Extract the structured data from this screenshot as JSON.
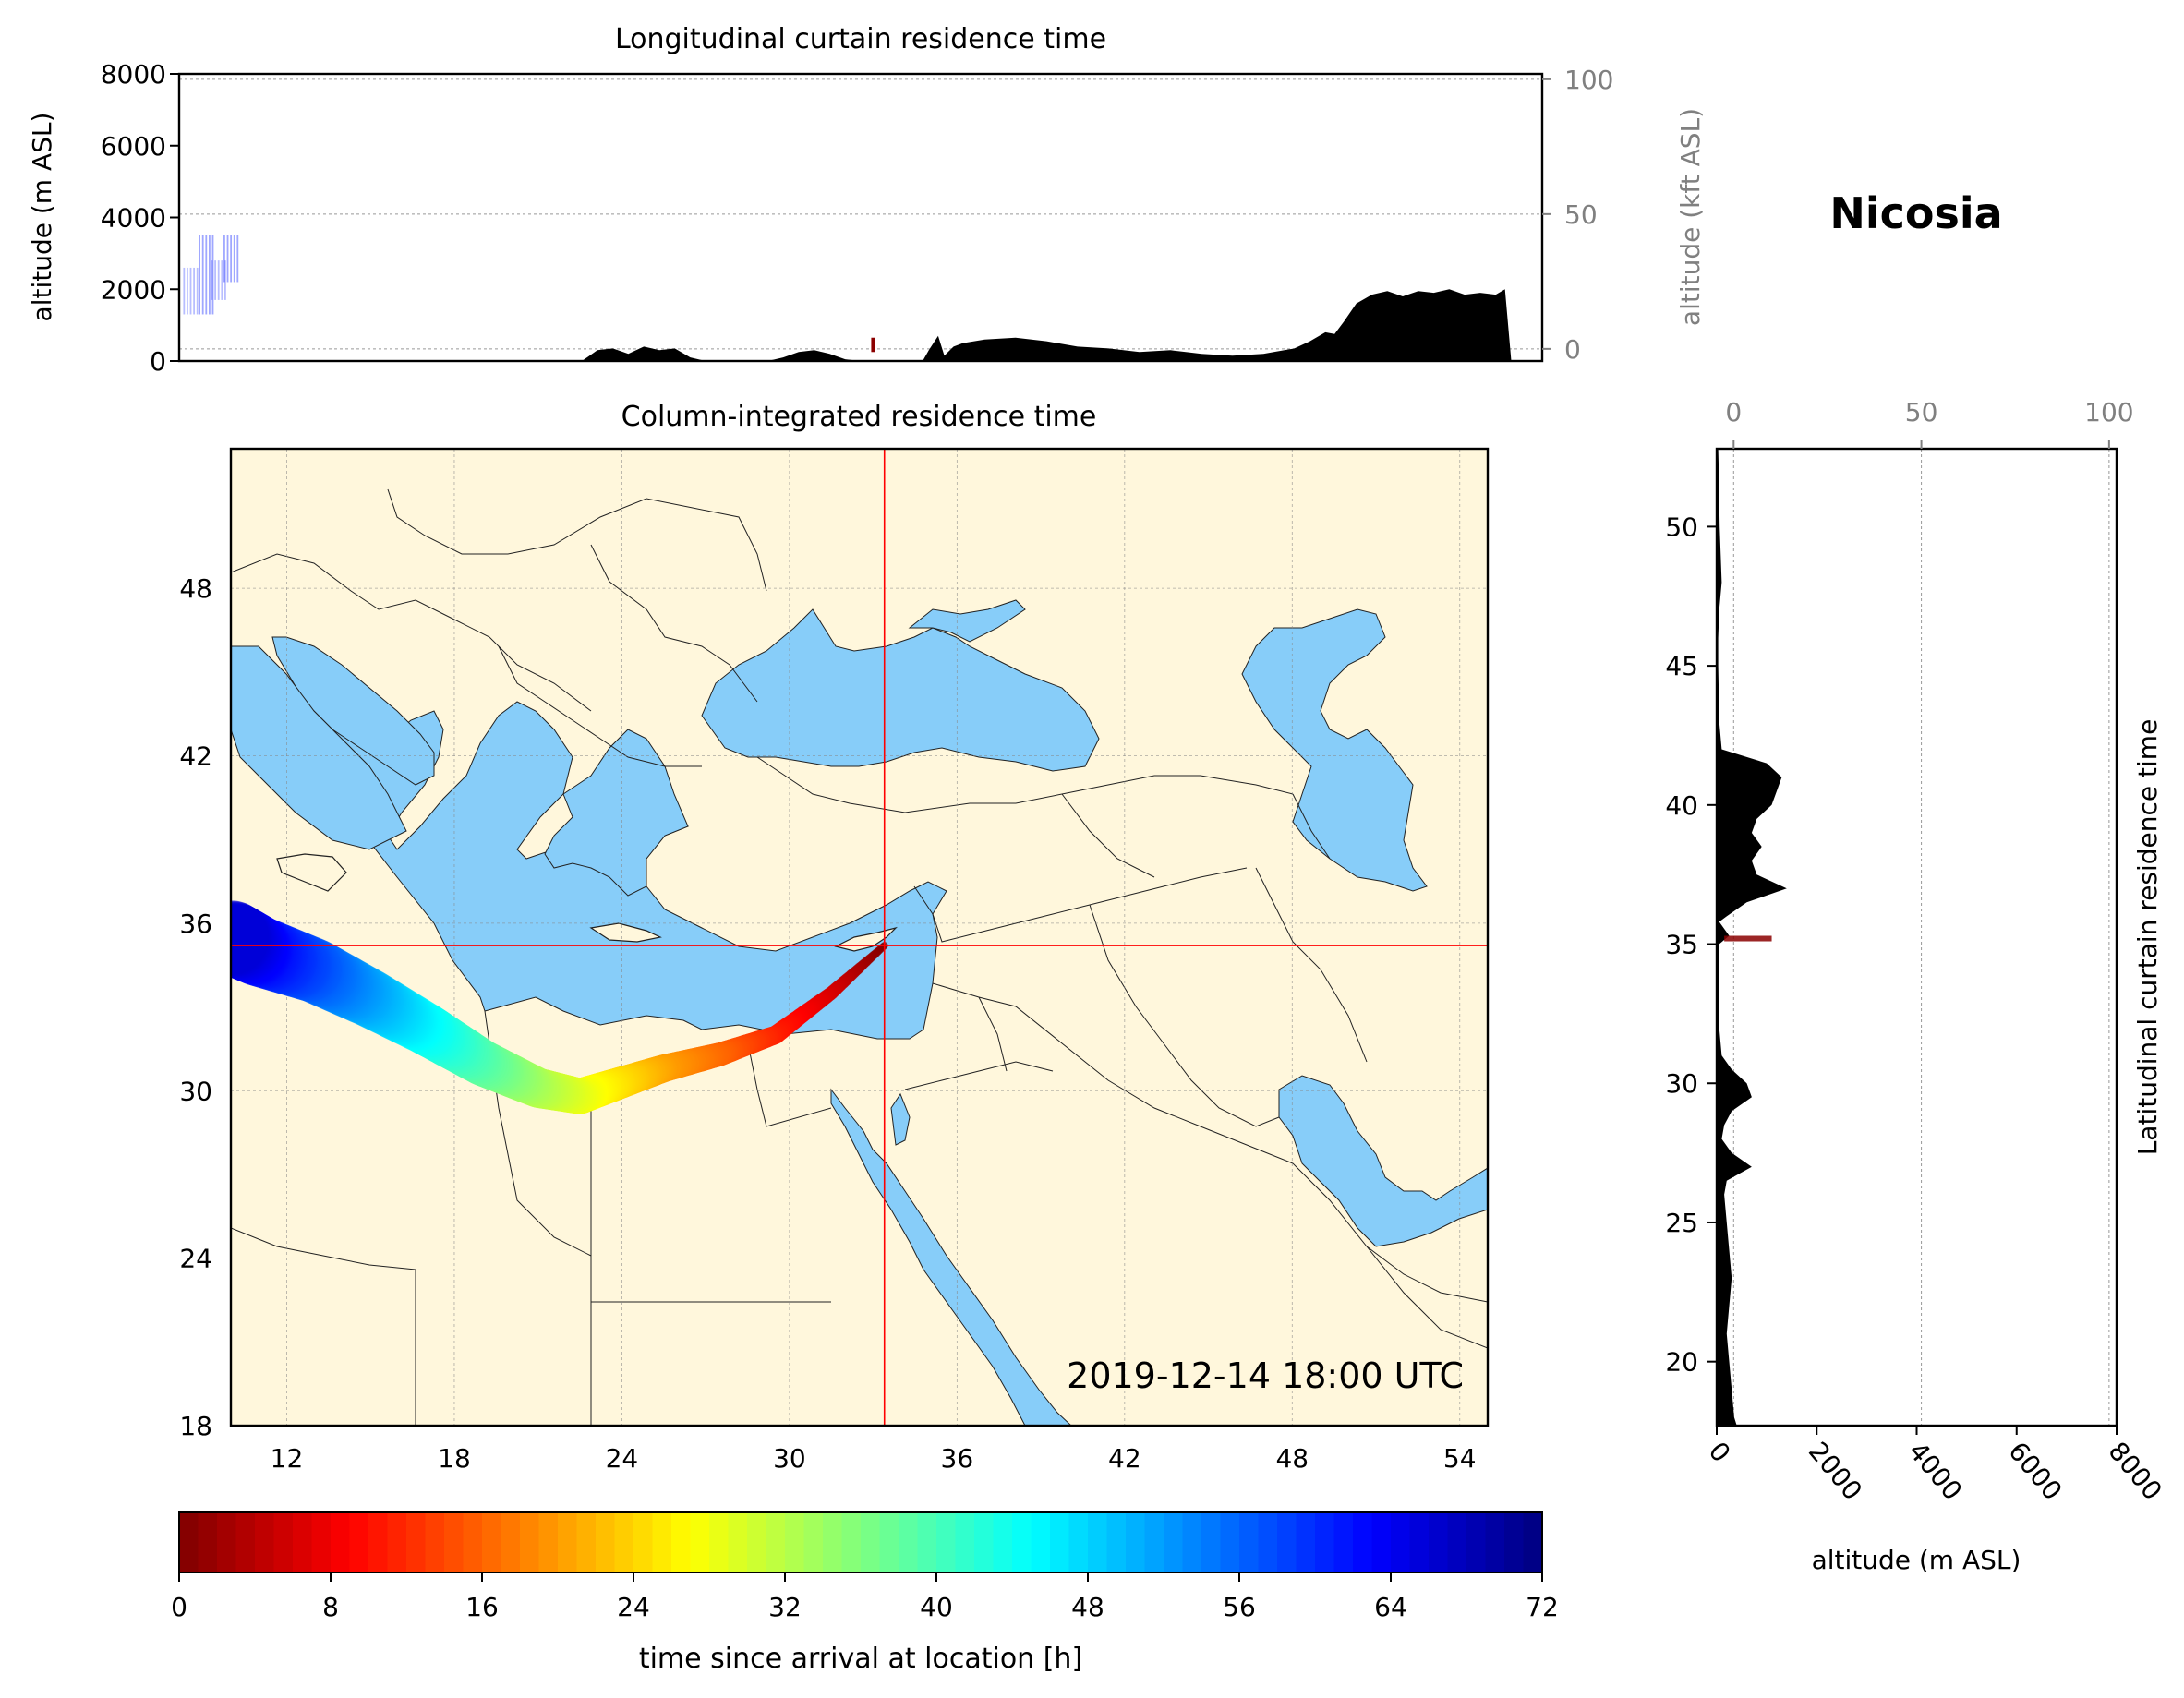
{
  "location": {
    "name": "Nicosia",
    "lat": 35.2,
    "lon": 33.4
  },
  "chart_data": [
    {
      "type": "area",
      "id": "longitudinal",
      "title": "Longitudinal curtain residence time",
      "ylabel": "altitude (m ASL)",
      "ylabel_right": "altitude (kft ASL)",
      "ylim": [
        0,
        8000
      ],
      "xlim": [
        11.0,
        55.0
      ],
      "yticks": [
        0,
        2000,
        4000,
        6000,
        8000
      ],
      "yticks_right": [
        0,
        50,
        100
      ],
      "ylim_right_kft": [
        -4.5,
        102
      ],
      "terrain": {
        "lon": [
          11,
          24,
          24.5,
          25,
          25.5,
          26,
          26.5,
          27,
          27.5,
          28,
          30,
          30.5,
          31,
          31.5,
          32,
          32.5,
          33,
          33.5,
          34,
          34.5,
          35,
          35.2,
          35.5,
          35.7,
          36,
          36.3,
          37,
          38,
          39,
          40,
          41,
          42,
          43,
          44,
          45,
          46,
          47,
          47.5,
          48,
          48.3,
          48.6,
          49,
          49.5,
          50,
          50.5,
          51,
          51.5,
          52,
          52.5,
          53,
          53.5,
          53.8,
          54,
          55
        ],
        "alt": [
          0,
          0,
          300,
          350,
          200,
          400,
          300,
          350,
          100,
          0,
          0,
          100,
          250,
          300,
          200,
          50,
          0,
          0,
          0,
          0,
          0,
          300,
          700,
          150,
          400,
          500,
          600,
          650,
          550,
          400,
          350,
          250,
          300,
          200,
          150,
          200,
          350,
          550,
          800,
          750,
          1100,
          1600,
          1850,
          1950,
          1800,
          1950,
          1900,
          2000,
          1850,
          1900,
          1850,
          2000,
          0,
          0
        ]
      },
      "plume_cells": [
        {
          "lon": 11.4,
          "alt_min": 1300,
          "alt_max": 2600
        },
        {
          "lon": 11.9,
          "alt_min": 1300,
          "alt_max": 3500
        },
        {
          "lon": 12.3,
          "alt_min": 1700,
          "alt_max": 2800
        },
        {
          "lon": 12.7,
          "alt_min": 2200,
          "alt_max": 3500
        }
      ],
      "receptor_mark": {
        "lon": 33.4,
        "alt_min": 250,
        "alt_max": 650
      }
    },
    {
      "type": "scatter",
      "id": "column",
      "title": "Column-integrated residence time",
      "xlim": [
        10,
        55
      ],
      "ylim": [
        18,
        53
      ],
      "xticks": [
        12,
        18,
        24,
        30,
        36,
        42,
        48,
        54
      ],
      "yticks": [
        18,
        24,
        30,
        36,
        42,
        48
      ],
      "annotation": "2019-12-14 18:00 UTC",
      "trajectory": {
        "lon": [
          33.4,
          31.5,
          29.5,
          27.5,
          25.5,
          24.0,
          22.5,
          21.0,
          19.0,
          17.0,
          15.0,
          13.0,
          11.0,
          10.0
        ],
        "lat": [
          35.2,
          33.5,
          32.0,
          31.3,
          30.8,
          30.3,
          29.8,
          30.1,
          31.0,
          32.2,
          33.3,
          34.3,
          35.0,
          35.5
        ],
        "hours": [
          0,
          6,
          11,
          16,
          20,
          24,
          28,
          32,
          38,
          44,
          50,
          56,
          62,
          66
        ]
      }
    },
    {
      "type": "area",
      "id": "latitudinal",
      "ylabel": "Latitudinal curtain residence time",
      "xlabel": "altitude (m ASL)",
      "xlim": [
        0,
        8000
      ],
      "ylim": [
        17.7,
        52.8
      ],
      "xticks": [
        0,
        2000,
        4000,
        6000,
        8000
      ],
      "xticks_top": [
        0,
        50,
        100
      ],
      "xlim_top_kft": [
        -4.5,
        102
      ],
      "yticks": [
        20,
        25,
        30,
        35,
        40,
        45,
        50
      ],
      "terrain": {
        "lat": [
          17.7,
          18,
          19,
          20,
          21,
          22,
          23,
          24,
          25,
          26,
          26.5,
          27,
          27.5,
          28,
          28.5,
          29,
          29.5,
          30,
          30.5,
          31,
          32,
          33,
          34,
          35,
          35.3,
          35.8,
          36,
          36.5,
          37,
          37.5,
          38,
          38.5,
          39,
          39.5,
          40,
          40.5,
          41,
          41.5,
          42,
          43,
          44,
          45,
          46,
          47,
          48,
          49,
          50,
          51,
          52,
          52.8
        ],
        "alt": [
          400,
          350,
          300,
          250,
          200,
          250,
          300,
          250,
          200,
          150,
          200,
          700,
          300,
          100,
          150,
          300,
          700,
          600,
          300,
          100,
          50,
          50,
          50,
          50,
          250,
          50,
          200,
          600,
          1400,
          800,
          700,
          900,
          700,
          800,
          1100,
          1200,
          1300,
          1000,
          100,
          50,
          40,
          30,
          30,
          50,
          100,
          80,
          60,
          50,
          40,
          30
        ]
      }
    }
  ],
  "colorbar": {
    "label": "time since arrival at location [h]",
    "ticks": [
      0,
      8,
      16,
      24,
      32,
      40,
      48,
      56,
      64,
      72
    ],
    "range": [
      0,
      72
    ],
    "colormap": "jet_r",
    "stops": [
      "#7f0000",
      "#ff0000",
      "#ff7f00",
      "#ffff00",
      "#7fff7f",
      "#00ffff",
      "#007fff",
      "#0000ff",
      "#00007f"
    ]
  },
  "colors": {
    "land": "#fff7dc",
    "sea": "#87cdf9",
    "terrain": "#000000",
    "crosshair": "#ff0000",
    "receptor": "#8b0000"
  }
}
